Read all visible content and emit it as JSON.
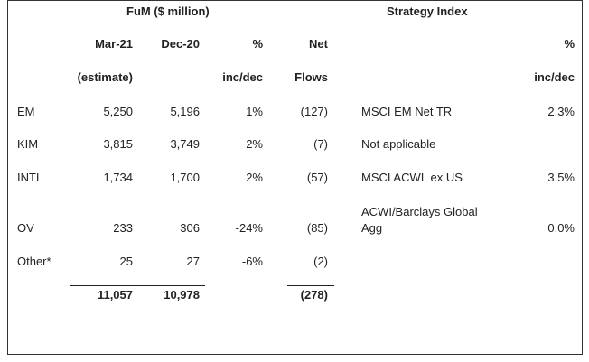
{
  "headers": {
    "fum_group": "FuM ($ million)",
    "strategy_group": "Strategy Index",
    "mar21": "Mar-21",
    "mar21_sub": "(estimate)",
    "dec20": "Dec-20",
    "pct": "%",
    "pct_sub": "inc/dec",
    "net": "Net",
    "net_sub": "Flows",
    "idx_pct": "%",
    "idx_pct_sub": "inc/dec"
  },
  "rows": [
    {
      "label": "EM",
      "mar21": "5,250",
      "dec20": "5,196",
      "pct": "1%",
      "flows": "(127)",
      "index": "MSCI EM Net TR",
      "index2": "",
      "index_pct": "2.3%"
    },
    {
      "label": "KIM",
      "mar21": "3,815",
      "dec20": "3,749",
      "pct": "2%",
      "flows": "(7)",
      "index": "Not applicable",
      "index2": "",
      "index_pct": ""
    },
    {
      "label": "INTL",
      "mar21": "1,734",
      "dec20": "1,700",
      "pct": "2%",
      "flows": "(57)",
      "index": "MSCI ACWI  ex US",
      "index2": "",
      "index_pct": "3.5%"
    },
    {
      "label": "OV",
      "mar21": "233",
      "dec20": "306",
      "pct": "-24%",
      "flows": "(85)",
      "index": "ACWI/Barclays Global",
      "index2": "Agg",
      "index_pct": "0.0%"
    },
    {
      "label": "Other*",
      "mar21": "25",
      "dec20": "27",
      "pct": "-6%",
      "flows": "(2)",
      "index": "",
      "index2": "",
      "index_pct": ""
    }
  ],
  "totals": {
    "mar21": "11,057",
    "dec20": "10,978",
    "flows": "(278)"
  }
}
